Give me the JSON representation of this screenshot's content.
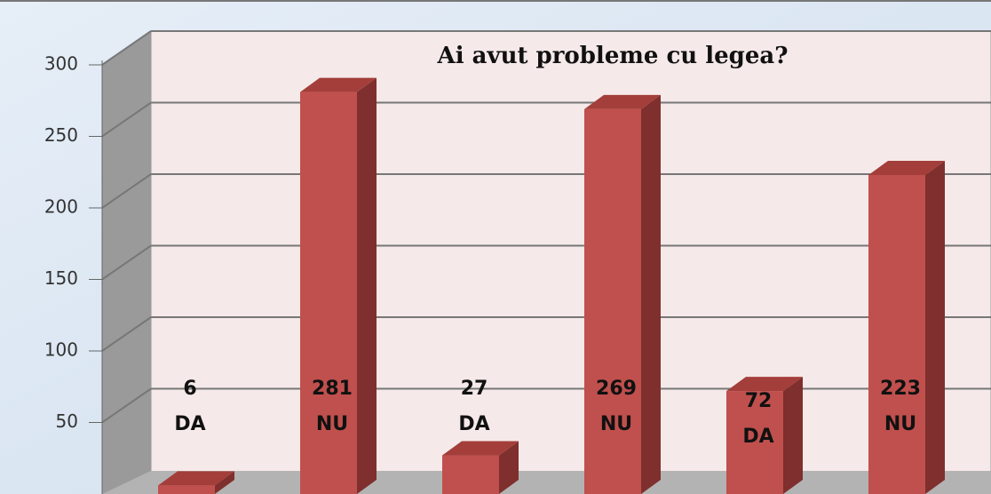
{
  "chart_data": {
    "type": "bar3d",
    "title": "Ai avut probleme cu legea?",
    "categories": [
      "DA",
      "NU",
      "DA",
      "NU",
      "DA",
      "NU"
    ],
    "values": [
      6,
      281,
      27,
      269,
      72,
      223
    ],
    "color": "#c0504d",
    "ylim": [
      0,
      300
    ],
    "yticks": [
      50,
      100,
      150,
      200,
      250,
      300
    ],
    "grid": true
  }
}
